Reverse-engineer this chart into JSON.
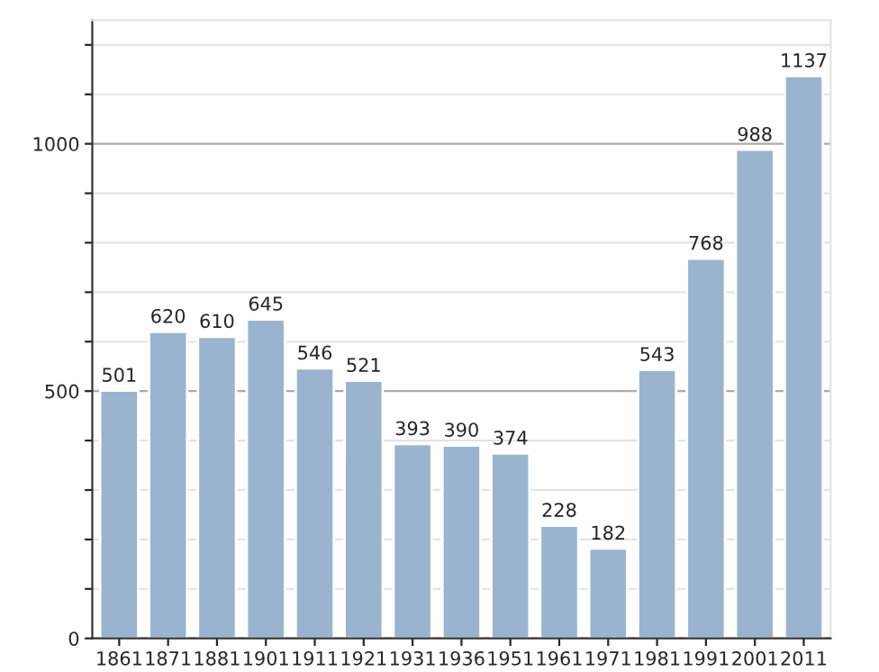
{
  "chart_data": {
    "type": "bar",
    "categories": [
      "1861",
      "1871",
      "1881",
      "1901",
      "1911",
      "1921",
      "1931",
      "1936",
      "1951",
      "1961",
      "1971",
      "1981",
      "1991",
      "2001",
      "2011"
    ],
    "values": [
      501,
      620,
      610,
      645,
      546,
      521,
      393,
      390,
      374,
      228,
      182,
      543,
      768,
      988,
      1137
    ],
    "color": "#9ab4d0",
    "data_labels": true,
    "grid": "y",
    "ylim": [
      0,
      1250
    ],
    "yticks": [
      0,
      {
        "value": 100,
        "label": null
      },
      {
        "value": 200,
        "label": null
      },
      {
        "value": 300,
        "label": null
      },
      {
        "value": 400,
        "label": null
      },
      500,
      {
        "value": 600,
        "label": null
      },
      {
        "value": 700,
        "label": null
      },
      {
        "value": 800,
        "label": null
      },
      {
        "value": 900,
        "label": null
      },
      1000,
      {
        "value": 1100,
        "label": null
      },
      {
        "value": 1200,
        "label": null
      }
    ]
  }
}
